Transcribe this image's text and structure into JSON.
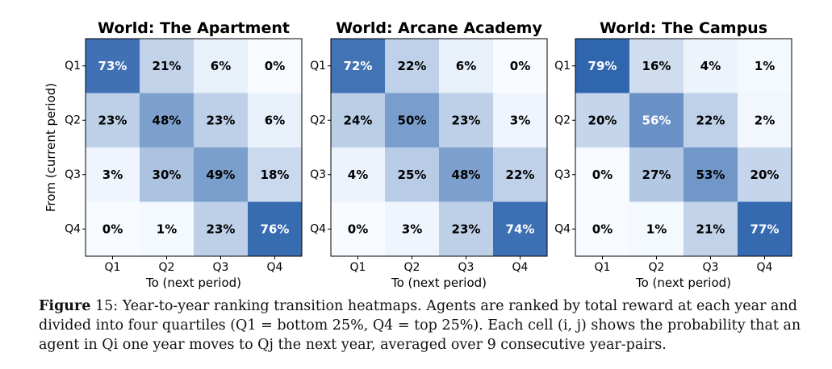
{
  "chart_data": [
    {
      "type": "heatmap",
      "title": "World: The Apartment",
      "xlabel": "To (next period)",
      "ylabel": "From (current period)",
      "x_categories": [
        "Q1",
        "Q2",
        "Q3",
        "Q4"
      ],
      "y_categories": [
        "Q1",
        "Q2",
        "Q3",
        "Q4"
      ],
      "values": [
        [
          73,
          21,
          6,
          0
        ],
        [
          23,
          48,
          23,
          6
        ],
        [
          3,
          30,
          49,
          18
        ],
        [
          0,
          1,
          23,
          76
        ]
      ],
      "value_format": "percent"
    },
    {
      "type": "heatmap",
      "title": "World: Arcane Academy",
      "xlabel": "To (next period)",
      "ylabel": "",
      "x_categories": [
        "Q1",
        "Q2",
        "Q3",
        "Q4"
      ],
      "y_categories": [
        "Q1",
        "Q2",
        "Q3",
        "Q4"
      ],
      "values": [
        [
          72,
          22,
          6,
          0
        ],
        [
          24,
          50,
          23,
          3
        ],
        [
          4,
          25,
          48,
          22
        ],
        [
          0,
          3,
          23,
          74
        ]
      ],
      "value_format": "percent"
    },
    {
      "type": "heatmap",
      "title": "World: The Campus",
      "xlabel": "To (next period)",
      "ylabel": "",
      "x_categories": [
        "Q1",
        "Q2",
        "Q3",
        "Q4"
      ],
      "y_categories": [
        "Q1",
        "Q2",
        "Q3",
        "Q4"
      ],
      "values": [
        [
          79,
          16,
          4,
          1
        ],
        [
          20,
          56,
          22,
          2
        ],
        [
          0,
          27,
          53,
          20
        ],
        [
          0,
          1,
          21,
          77
        ]
      ],
      "value_format": "percent"
    }
  ],
  "colormap": {
    "low": "#f7fbff",
    "high": "#2d64ad",
    "text_dark": "#000000",
    "text_light": "#ffffff"
  },
  "caption": {
    "label": "Figure",
    "number": "15:",
    "text": " Year-to-year ranking transition heatmaps. Agents are ranked by total reward at each year and divided into four quartiles (Q1 = bottom 25%, Q4 = top 25%). Each cell (i, j) shows the probability that an agent in Qi one year moves to Qj the next year, averaged over 9 consecutive year-pairs."
  }
}
